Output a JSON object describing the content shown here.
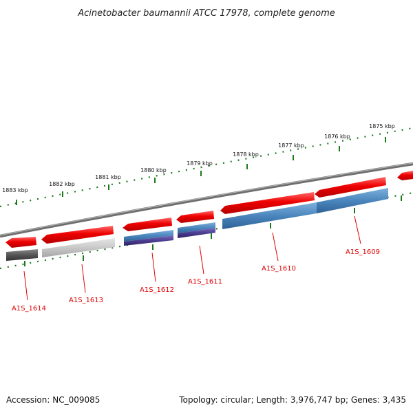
{
  "title": "Acinetobacter baumannii ATCC 17978, complete genome",
  "ticks": [
    "1883 kbp",
    "1882 kbp",
    "1881 kbp",
    "1880 kbp",
    "1879 kbp",
    "1878 kbp",
    "1877 kbp",
    "1876 kbp",
    "1875 kbp"
  ],
  "genes": [
    "A1S_1614",
    "A1S_1613",
    "A1S_1612",
    "A1S_1611",
    "A1S_1610",
    "A1S_1609"
  ],
  "footer": {
    "accession": "Accession: NC_009085",
    "summary": "Topology: circular; Length: 3,976,747 bp; Genes: 3,435"
  },
  "colors": {
    "cds": "#ee0000",
    "blue_feature": "#4a86bd",
    "purple_feature": "#4b3d8f",
    "dark_gray_feature": "#555555",
    "light_gray_feature": "#c8c8c8",
    "backbone": "#808080",
    "tick": "#1a7a1a",
    "label": "#dd0000"
  }
}
